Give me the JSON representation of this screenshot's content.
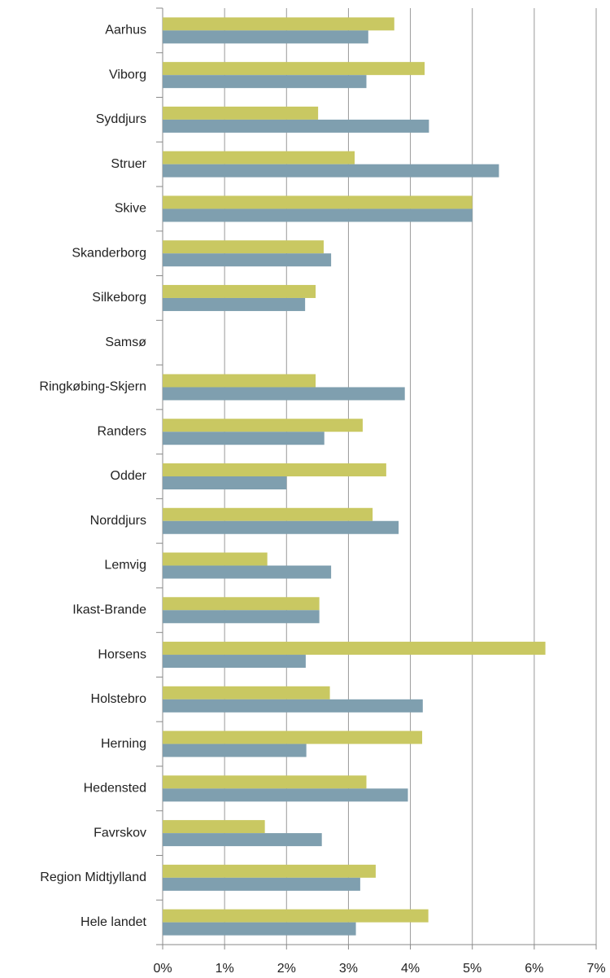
{
  "chart_data": {
    "type": "bar",
    "orientation": "horizontal",
    "categories": [
      "Aarhus",
      "Viborg",
      "Syddjurs",
      "Struer",
      "Skive",
      "Skanderborg",
      "Silkeborg",
      "Samsø",
      "Ringkøbing-Skjern",
      "Randers",
      "Odder",
      "Norddjurs",
      "Lemvig",
      "Ikast-Brande",
      "Horsens",
      "Holstebro",
      "Herning",
      "Hedensted",
      "Favrskov",
      "Region Midtjylland",
      "Hele landet"
    ],
    "series": [
      {
        "color": "#c9c862",
        "values": [
          3.74,
          4.23,
          2.51,
          3.1,
          5.0,
          2.6,
          2.47,
          null,
          2.47,
          3.23,
          3.61,
          3.39,
          1.69,
          2.53,
          6.18,
          2.7,
          4.19,
          3.29,
          1.65,
          3.44,
          4.29
        ]
      },
      {
        "color": "#7f9faf",
        "values": [
          3.32,
          3.29,
          4.3,
          5.43,
          5.0,
          2.72,
          2.3,
          null,
          3.91,
          2.61,
          2.0,
          3.81,
          2.72,
          2.53,
          2.31,
          4.2,
          2.32,
          3.96,
          2.57,
          3.19,
          3.12
        ]
      }
    ],
    "xlim": [
      0,
      7
    ],
    "xticks": [
      {
        "value": 0,
        "label": "0%"
      },
      {
        "value": 1,
        "label": "1%"
      },
      {
        "value": 2,
        "label": "2%"
      },
      {
        "value": 3,
        "label": "3%"
      },
      {
        "value": 4,
        "label": "4%"
      },
      {
        "value": 5,
        "label": "5%"
      },
      {
        "value": 6,
        "label": "6%"
      },
      {
        "value": 7,
        "label": "7%"
      }
    ],
    "grid": true
  }
}
